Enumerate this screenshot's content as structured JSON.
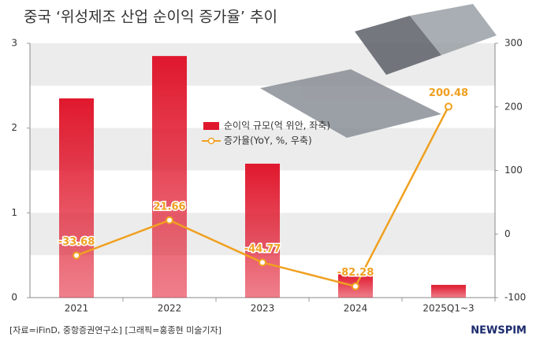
{
  "chart_data": {
    "type": "bar_line",
    "title": "중국 ‘위성제조 산업 순이익 증가율’ 추이",
    "categories": [
      "2021",
      "2022",
      "2023",
      "2024",
      "2025Q1~3"
    ],
    "series": [
      {
        "name": "순이익 규모(억 위안, 좌축)",
        "color": "#e0182d",
        "values": [
          2.35,
          2.85,
          1.58,
          0.28,
          0.15
        ]
      },
      {
        "name": "증가율(YoY, %, 우축)",
        "color": "#f0a020",
        "axis": "y2",
        "values": [
          -33.68,
          21.66,
          -44.77,
          -82.28,
          200.48
        ]
      }
    ],
    "ylim": [
      0,
      3
    ],
    "yticks": [
      0,
      1,
      2,
      3
    ],
    "y2lim": [
      -100,
      300
    ],
    "y2ticks": [
      -100,
      0,
      100,
      200,
      300
    ],
    "source": "[자료=iFinD, 중항증권연구소] [그래픽=홍종현 미술기자]",
    "logo": "NEWSPIM"
  }
}
